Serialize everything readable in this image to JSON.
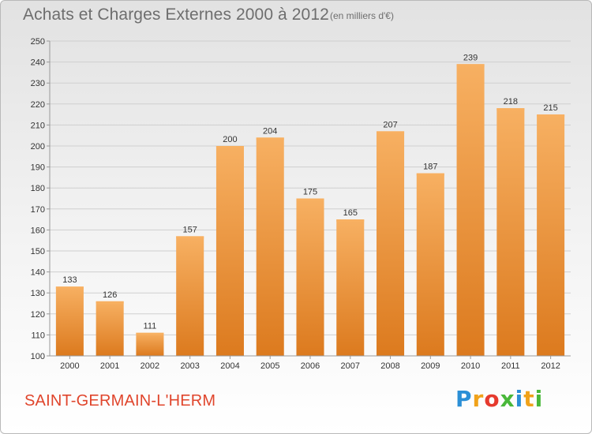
{
  "header": {
    "title": "Achats et Charges Externes 2000 à 2012",
    "subtitle": "(en milliers d'€)"
  },
  "footer": {
    "town": "SAINT-GERMAIN-L'HERM",
    "logo": {
      "letters": [
        "P",
        "r",
        "o",
        "x",
        "i",
        "t",
        "i"
      ],
      "colors": [
        "#2b8fd6",
        "#f0a21a",
        "#e63a2e",
        "#49b83a",
        "#2b8fd6",
        "#f0a21a",
        "#49b83a"
      ]
    }
  },
  "colors": {
    "bar": "#f29a3a",
    "bar_light": "#f7b062",
    "bar_dark": "#dc7a1e",
    "grid": "#cfcfcf",
    "axis": "#999999"
  },
  "chart_data": {
    "type": "bar",
    "categories": [
      "2000",
      "2001",
      "2002",
      "2003",
      "2004",
      "2005",
      "2006",
      "2007",
      "2008",
      "2009",
      "2010",
      "2011",
      "2012"
    ],
    "values": [
      133,
      126,
      111,
      157,
      200,
      204,
      175,
      165,
      207,
      187,
      239,
      218,
      215
    ],
    "title": "Achats et Charges Externes 2000 à 2012",
    "ylim": [
      100,
      250
    ],
    "yticks": [
      100,
      110,
      120,
      130,
      140,
      150,
      160,
      170,
      180,
      190,
      200,
      210,
      220,
      230,
      240,
      250
    ],
    "grid": true
  }
}
